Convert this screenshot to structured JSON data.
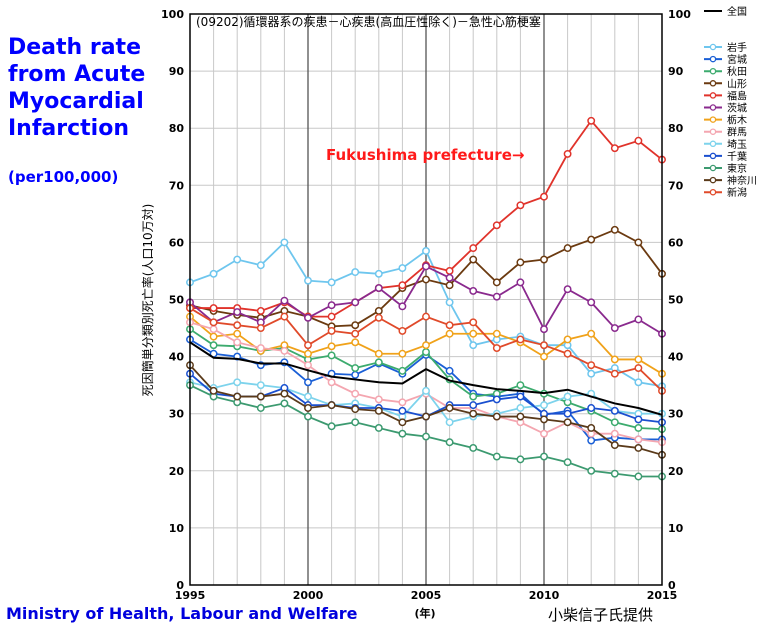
{
  "chart_data": {
    "type": "line",
    "title": "(09202)循環器系の疾患－心疾患(高血圧性除く)－急性心筋梗塞",
    "ylabel": "死因簡単分類別死亡率(人口10万対)",
    "xlabel": "(年)",
    "side_title": [
      "Death rate",
      "from Acute",
      "Myocardial",
      "Infarction"
    ],
    "side_subtitle": "(per100,000)",
    "annotation": "Fukushima prefecture→",
    "source_left": "Ministry of Health, Labour and Welfare",
    "source_right": "小柴信子氏提供",
    "xlim": [
      1995,
      2015
    ],
    "ylim": [
      0,
      100
    ],
    "x_ticks": [
      "1995",
      "2000",
      "2005",
      "2010",
      "2015"
    ],
    "y_ticks": [
      "0",
      "10",
      "20",
      "30",
      "40",
      "50",
      "60",
      "70",
      "80",
      "90",
      "100"
    ],
    "grid": true,
    "legend": "right",
    "x": [
      1995,
      1996,
      1997,
      1998,
      1999,
      2000,
      2001,
      2002,
      2003,
      2004,
      2005,
      2006,
      2007,
      2008,
      2009,
      2010,
      2011,
      2012,
      2013,
      2014,
      2015
    ],
    "series": [
      {
        "name": "全国",
        "color": "#000000",
        "marker": false,
        "values": [
          42.5,
          39.8,
          39.6,
          38.8,
          38.8,
          37.6,
          36.5,
          36.0,
          35.5,
          35.3,
          37.8,
          35.8,
          35.0,
          34.3,
          34.0,
          33.6,
          34.2,
          33.0,
          31.8,
          31.0,
          29.8
        ]
      },
      {
        "name": "岩手",
        "color": "#6ec6ee",
        "marker": true,
        "values": [
          53.0,
          54.5,
          57.0,
          56.0,
          60.0,
          53.3,
          53.0,
          54.8,
          54.5,
          55.5,
          58.5,
          49.5,
          42.0,
          43.0,
          43.5,
          42.0,
          42.0,
          37.0,
          38.0,
          35.5,
          34.8
        ]
      },
      {
        "name": "宮城",
        "color": "#1a5fd6",
        "marker": true,
        "values": [
          43.0,
          40.5,
          40.0,
          38.5,
          39.0,
          35.5,
          37.0,
          36.8,
          38.8,
          37.0,
          40.3,
          37.5,
          33.5,
          33.0,
          33.5,
          29.8,
          30.5,
          25.3,
          25.8,
          25.5,
          25.5
        ]
      },
      {
        "name": "秋田",
        "color": "#3cab6e",
        "marker": true,
        "values": [
          44.8,
          42.0,
          41.8,
          41.0,
          41.5,
          39.5,
          40.2,
          38.0,
          39.0,
          37.5,
          40.8,
          36.0,
          33.0,
          33.5,
          35.0,
          33.5,
          32.0,
          30.5,
          28.5,
          27.5,
          27.3
        ]
      },
      {
        "name": "山形",
        "color": "#6b3a10",
        "marker": true,
        "values": [
          49.0,
          48.0,
          47.3,
          46.8,
          48.0,
          47.0,
          45.3,
          45.5,
          48.0,
          52.0,
          53.5,
          52.5,
          57.0,
          53.0,
          56.5,
          57.0,
          59.0,
          60.5,
          62.2,
          60.0,
          54.5
        ]
      },
      {
        "name": "福島",
        "color": "#e0332b",
        "marker": true,
        "values": [
          48.5,
          48.5,
          48.5,
          48.0,
          49.5,
          47.0,
          47.0,
          49.5,
          52.0,
          52.5,
          56.0,
          55.0,
          59.0,
          63.0,
          66.5,
          68.0,
          75.5,
          81.3,
          76.5,
          77.8,
          74.5
        ]
      },
      {
        "name": "茨城",
        "color": "#8a2a8e",
        "marker": true,
        "values": [
          49.5,
          46.0,
          47.8,
          46.0,
          49.8,
          46.8,
          49.0,
          49.5,
          52.0,
          48.8,
          55.8,
          53.8,
          51.5,
          50.5,
          53.0,
          44.8,
          51.8,
          49.5,
          45.0,
          46.5,
          44.0
        ]
      },
      {
        "name": "栃木",
        "color": "#f0a21a",
        "marker": true,
        "values": [
          47.0,
          43.5,
          44.0,
          41.0,
          42.0,
          40.5,
          41.8,
          42.5,
          40.5,
          40.5,
          42.0,
          44.0,
          44.0,
          44.0,
          42.5,
          40.0,
          43.0,
          44.0,
          39.5,
          39.5,
          37.0
        ]
      },
      {
        "name": "群馬",
        "color": "#f4a6b0",
        "marker": true,
        "values": [
          46.0,
          44.8,
          42.5,
          41.5,
          41.0,
          38.5,
          35.5,
          33.5,
          32.5,
          32.0,
          33.5,
          31.0,
          31.0,
          29.5,
          28.5,
          26.5,
          28.5,
          26.5,
          26.5,
          25.5,
          25.0
        ]
      },
      {
        "name": "埼玉",
        "color": "#7dd3ec",
        "marker": true,
        "values": [
          35.5,
          34.5,
          35.5,
          35.0,
          34.5,
          33.0,
          31.5,
          31.8,
          31.0,
          29.5,
          34.0,
          28.5,
          29.5,
          30.0,
          31.0,
          31.5,
          33.0,
          33.5,
          30.5,
          30.0,
          30.0
        ]
      },
      {
        "name": "千葉",
        "color": "#1a4fcf",
        "marker": true,
        "values": [
          37.0,
          33.5,
          33.0,
          33.0,
          34.5,
          31.5,
          31.5,
          31.0,
          31.0,
          30.5,
          29.5,
          31.5,
          31.5,
          32.5,
          33.0,
          30.0,
          30.0,
          31.0,
          30.5,
          29.0,
          28.5
        ]
      },
      {
        "name": "東京",
        "color": "#3c9a70",
        "marker": true,
        "values": [
          35.0,
          33.0,
          32.0,
          31.0,
          31.8,
          29.5,
          27.8,
          28.5,
          27.5,
          26.5,
          26.0,
          25.0,
          24.0,
          22.5,
          22.0,
          22.5,
          21.5,
          20.0,
          19.5,
          19.0,
          19.0
        ]
      },
      {
        "name": "神奈川",
        "color": "#5a3a1a",
        "marker": true,
        "values": [
          38.5,
          34.0,
          33.0,
          33.0,
          33.5,
          31.0,
          31.5,
          30.8,
          30.5,
          28.5,
          29.5,
          31.0,
          30.0,
          29.5,
          29.5,
          29.0,
          28.5,
          27.5,
          24.5,
          24.0,
          22.8
        ]
      },
      {
        "name": "新潟",
        "color": "#e04a2a",
        "marker": true,
        "values": [
          48.5,
          46.0,
          45.5,
          45.0,
          47.0,
          42.0,
          44.5,
          44.0,
          46.8,
          44.5,
          47.0,
          45.5,
          46.0,
          41.5,
          43.0,
          42.0,
          40.5,
          38.5,
          37.0,
          38.0,
          34.0
        ]
      }
    ]
  }
}
